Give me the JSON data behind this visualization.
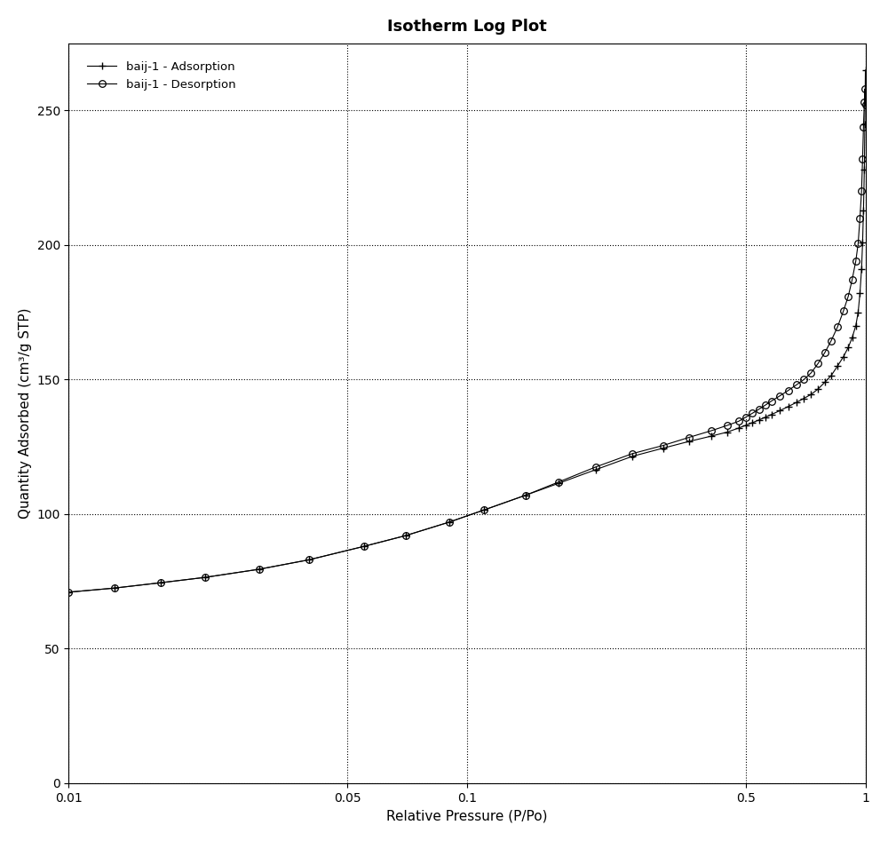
{
  "title": "Isotherm Log Plot",
  "xlabel": "Relative Pressure (P/Po)",
  "ylabel": "Quantity Adsorbed (cm³/g STP)",
  "adsorption_label": "baij-1 - Adsorption",
  "desorption_label": "baij-1 - Desorption",
  "adsorption_x": [
    0.01,
    0.013,
    0.017,
    0.022,
    0.03,
    0.04,
    0.055,
    0.07,
    0.09,
    0.11,
    0.14,
    0.17,
    0.21,
    0.26,
    0.31,
    0.36,
    0.41,
    0.45,
    0.48,
    0.5,
    0.52,
    0.54,
    0.56,
    0.58,
    0.61,
    0.64,
    0.67,
    0.7,
    0.73,
    0.76,
    0.79,
    0.82,
    0.85,
    0.88,
    0.905,
    0.925,
    0.945,
    0.958,
    0.968,
    0.977,
    0.983,
    0.988,
    0.993,
    0.996,
    0.999
  ],
  "adsorption_y": [
    71.0,
    72.5,
    74.5,
    76.5,
    79.5,
    83.0,
    88.0,
    92.0,
    97.0,
    101.5,
    107.0,
    111.5,
    116.5,
    121.5,
    124.5,
    127.0,
    129.0,
    130.5,
    132.0,
    133.0,
    134.0,
    135.0,
    136.0,
    137.0,
    138.5,
    140.0,
    141.5,
    143.0,
    144.5,
    146.5,
    149.0,
    151.5,
    155.0,
    158.5,
    162.0,
    165.5,
    170.0,
    175.0,
    182.0,
    191.0,
    201.0,
    213.0,
    228.0,
    245.0,
    265.0
  ],
  "desorption_x": [
    0.01,
    0.013,
    0.017,
    0.022,
    0.03,
    0.04,
    0.055,
    0.07,
    0.09,
    0.11,
    0.14,
    0.17,
    0.21,
    0.26,
    0.31,
    0.36,
    0.41,
    0.45,
    0.48,
    0.5,
    0.52,
    0.54,
    0.56,
    0.58,
    0.61,
    0.64,
    0.67,
    0.7,
    0.73,
    0.76,
    0.79,
    0.82,
    0.85,
    0.88,
    0.905,
    0.925,
    0.945,
    0.958,
    0.968,
    0.977,
    0.983,
    0.988,
    0.993,
    0.996,
    0.999
  ],
  "desorption_y": [
    71.0,
    72.5,
    74.5,
    76.5,
    79.5,
    83.0,
    88.0,
    92.0,
    97.0,
    101.5,
    107.0,
    112.0,
    117.5,
    122.5,
    125.5,
    128.5,
    131.0,
    133.0,
    134.5,
    136.0,
    137.5,
    139.0,
    140.5,
    142.0,
    144.0,
    146.0,
    148.0,
    150.0,
    152.5,
    156.0,
    160.0,
    164.5,
    169.5,
    175.5,
    181.0,
    187.0,
    194.0,
    200.5,
    210.0,
    220.0,
    232.0,
    244.0,
    253.0,
    258.0,
    252.0
  ],
  "ylim": [
    0,
    275
  ],
  "xticks": [
    0.01,
    0.05,
    0.1,
    0.5,
    1.0
  ],
  "yticks": [
    0,
    50,
    100,
    150,
    200,
    250
  ],
  "line_color": "#000000",
  "background_color": "#ffffff",
  "grid_color": "#000000",
  "title_fontsize": 13,
  "label_fontsize": 11,
  "tick_fontsize": 10
}
